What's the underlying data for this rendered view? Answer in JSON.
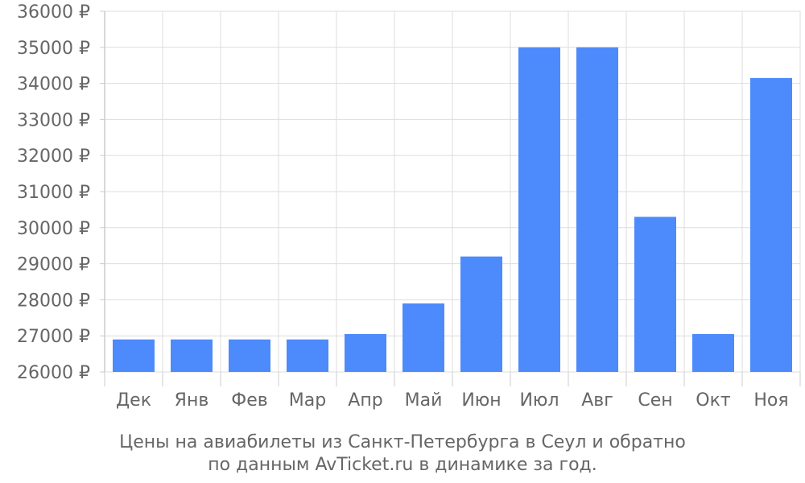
{
  "chart_data": {
    "type": "bar",
    "categories": [
      "Дек",
      "Янв",
      "Фев",
      "Мар",
      "Апр",
      "Май",
      "Июн",
      "Июл",
      "Авг",
      "Сен",
      "Окт",
      "Ноя"
    ],
    "values": [
      26900,
      26900,
      26900,
      26900,
      27050,
      27900,
      29200,
      35000,
      35000,
      30300,
      27050,
      34150
    ],
    "ylim": [
      26000,
      36000
    ],
    "ytick_step": 1000,
    "ytick_suffix": " ₽",
    "grid": true,
    "bar_color": "#4d8afb",
    "caption_line1": "Цены на авиабилеты из Санкт-Петербурга в Сеул и обратно",
    "caption_line2": "по данным AvTicket.ru в динамике за год."
  }
}
